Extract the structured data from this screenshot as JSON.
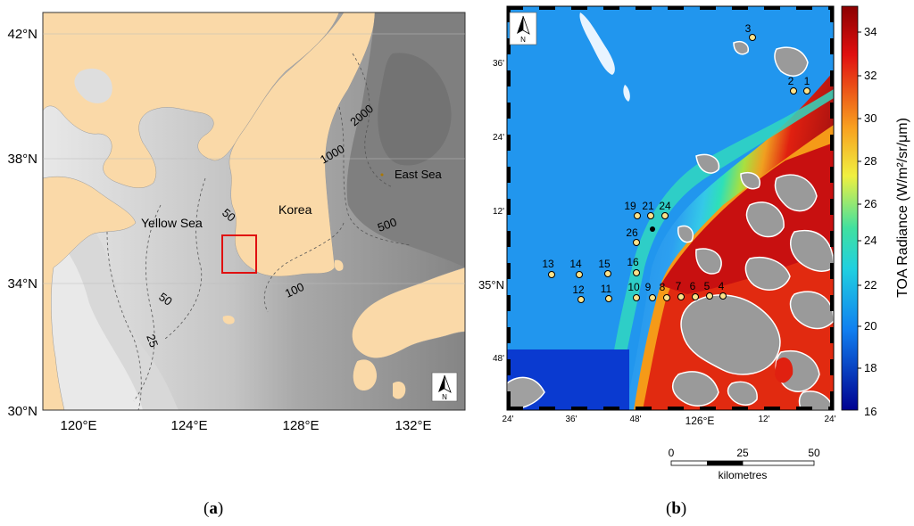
{
  "panel_a": {
    "caption": "(a)",
    "lat_labels": [
      "42°N",
      "38°N",
      "34°N",
      "30°N"
    ],
    "lon_labels": [
      "120°E",
      "124°E",
      "128°E",
      "132°E"
    ],
    "places": {
      "yellow_sea": "Yellow Sea",
      "korea": "Korea",
      "east_sea": "East Sea"
    },
    "contours": [
      "2000",
      "1000",
      "500",
      "50",
      "100",
      "50",
      "25"
    ],
    "north_label": "N",
    "colors": {
      "land": "#fad9a8",
      "sea_deep": "#8a8a8a",
      "box": "#e01010"
    }
  },
  "panel_b": {
    "caption": "(b)",
    "lat_labels": [
      "36'",
      "24'",
      "12'",
      "35°N",
      "48'"
    ],
    "lon_labels": [
      "24'",
      "36'",
      "48'",
      "126°E",
      "12'",
      "24'"
    ],
    "north_label": "N",
    "stations": [
      "1",
      "2",
      "3",
      "4",
      "5",
      "6",
      "7",
      "8",
      "9",
      "10",
      "11",
      "12",
      "13",
      "14",
      "15",
      "16",
      "19",
      "21",
      "24",
      "26"
    ],
    "colorbar": {
      "title": "TOA Radiance (W/m²/sr/μm)",
      "ticks": [
        "34",
        "32",
        "30",
        "28",
        "26",
        "24",
        "22",
        "20",
        "18",
        "16"
      ],
      "min": 16,
      "max": 35
    },
    "scale_bar": {
      "ticks": [
        "0",
        "25",
        "50"
      ],
      "unit": "kilometres"
    }
  }
}
